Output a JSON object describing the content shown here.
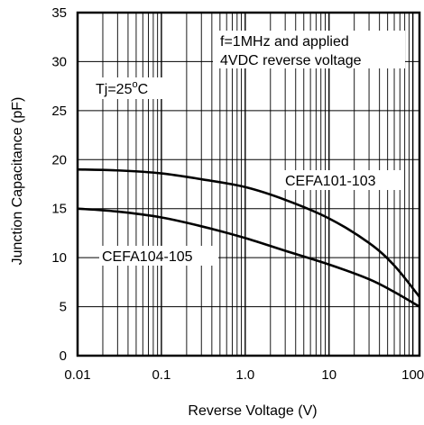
{
  "chart_data": {
    "type": "line",
    "xlabel": "Reverse Voltage (V)",
    "ylabel": "Junction Capacitance (pF)",
    "x_scale": "log",
    "xlim": [
      0.01,
      120
    ],
    "ylim": [
      0,
      35
    ],
    "grid": true,
    "x_ticks": [
      {
        "value": 0.01,
        "label": "0.01"
      },
      {
        "value": 0.1,
        "label": "0.1"
      },
      {
        "value": 1,
        "label": "1.0"
      },
      {
        "value": 10,
        "label": "10"
      },
      {
        "value": 100,
        "label": "100"
      }
    ],
    "y_ticks": [
      {
        "value": 0,
        "label": "0"
      },
      {
        "value": 5,
        "label": "5"
      },
      {
        "value": 10,
        "label": "10"
      },
      {
        "value": 15,
        "label": "15"
      },
      {
        "value": 20,
        "label": "20"
      },
      {
        "value": 25,
        "label": "25"
      },
      {
        "value": 30,
        "label": "30"
      },
      {
        "value": 35,
        "label": "35"
      }
    ],
    "annotations": {
      "condition_line1": "f=1MHz and applied",
      "condition_line2": "4VDC reverse voltage",
      "temp_prefix": "Tj=25",
      "temp_degree": "o",
      "temp_suffix": "C"
    },
    "series": [
      {
        "name": "CEFA101-103",
        "x": [
          0.01,
          0.03,
          0.1,
          0.3,
          1,
          3,
          10,
          30,
          60,
          120
        ],
        "y": [
          19.0,
          18.9,
          18.6,
          18.0,
          17.2,
          15.9,
          14.0,
          11.5,
          9.2,
          6.0
        ]
      },
      {
        "name": "CEFA104-105",
        "x": [
          0.01,
          0.03,
          0.1,
          0.3,
          1,
          3,
          10,
          30,
          60,
          120
        ],
        "y": [
          15.0,
          14.7,
          14.1,
          13.2,
          12.0,
          10.7,
          9.3,
          7.8,
          6.5,
          5.0
        ]
      }
    ]
  }
}
